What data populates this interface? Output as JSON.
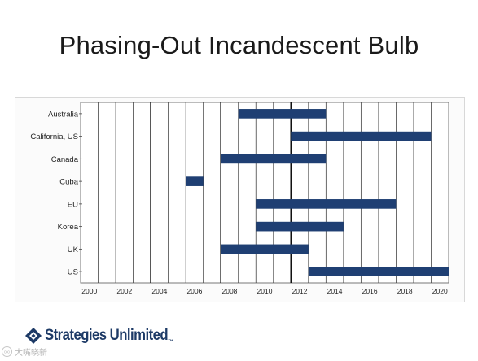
{
  "slide": {
    "title": "Phasing-Out Incandescent Bulb",
    "logo_text": "Strategies Unlimited",
    "logo_tm": "™",
    "watermark": "大嘴晓新"
  },
  "chart_data": {
    "type": "gantt",
    "title": "",
    "xlabel": "",
    "ylabel": "",
    "xlim": [
      1999.5,
      2020.5
    ],
    "x_ticks": [
      2000,
      2002,
      2004,
      2006,
      2008,
      2010,
      2012,
      2014,
      2016,
      2018,
      2020
    ],
    "categories": [
      "Australia",
      "California, US",
      "Canada",
      "Cuba",
      "EU",
      "Korea",
      "UK",
      "US"
    ],
    "bars": [
      {
        "category": "Australia",
        "start": 2008.5,
        "end": 2013.5
      },
      {
        "category": "California, US",
        "start": 2011.5,
        "end": 2019.5
      },
      {
        "category": "Canada",
        "start": 2007.5,
        "end": 2013.5
      },
      {
        "category": "Cuba",
        "start": 2005.5,
        "end": 2006.5
      },
      {
        "category": "EU",
        "start": 2009.5,
        "end": 2017.5
      },
      {
        "category": "Korea",
        "start": 2009.5,
        "end": 2014.5
      },
      {
        "category": "UK",
        "start": 2007.5,
        "end": 2012.5
      },
      {
        "category": "US",
        "start": 2012.5,
        "end": 2020.5
      }
    ],
    "bar_color": "#1f3f73",
    "grid": true,
    "major_gridlines": [
      2003.5,
      2007.5,
      2011.5
    ]
  }
}
